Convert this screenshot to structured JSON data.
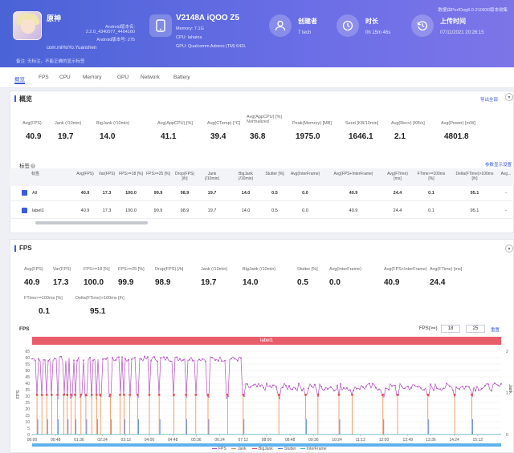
{
  "header": {
    "app_name": "原神",
    "app_lines": [
      "Android版本名:",
      "2.2.0_4340077_4464160",
      "Android版本号: 275"
    ],
    "package": "com.miHoYo.Yuanshen",
    "note": "备注: 无标注，不能正确的显示标签",
    "top_right": "数据由PerfDog8.0-210830版本收集",
    "device": {
      "title": "V2148A iQOO Z5",
      "lines": [
        "Memory: 7.1G",
        "CPU: lahaina",
        "GPU: Qualcomm Adreno (TM) 642L"
      ]
    },
    "creator": {
      "label": "创建者",
      "value": "7 tech"
    },
    "duration": {
      "label": "时长",
      "value": "0h 15m 46s"
    },
    "upload": {
      "label": "上传时间",
      "value": "07/11/2021 20:26:15"
    }
  },
  "tabs": [
    "概览",
    "FPS",
    "CPU",
    "Memory",
    "GPU",
    "Network",
    "Battery"
  ],
  "overview": {
    "title": "概览",
    "export": "导出全部",
    "metrics": [
      {
        "label": "Avg(FPS)",
        "value": "40.9"
      },
      {
        "label": "Jank (/10min)",
        "value": "19.7"
      },
      {
        "label": "BigJank (/10min)",
        "value": "14.0"
      },
      {
        "label": "Avg(AppCPU) [%]",
        "value": "41.1"
      },
      {
        "label": "Avg(CTemp) [°C]",
        "value": "39.4"
      },
      {
        "label": "Avg(AppCPU) [%] Normalized",
        "value": "36.8"
      },
      {
        "label": "Peak(Memory) [MB]",
        "value": "1975.0"
      },
      {
        "label": "Send [KB/10min]",
        "value": "1646.1"
      },
      {
        "label": "Avg(Recv) [KB/s]",
        "value": "2.1"
      },
      {
        "label": "Avg(Power) [mW]",
        "value": "4801.8"
      }
    ],
    "labels_title": "标签",
    "more_link": "参数显示设置",
    "table": {
      "headers": [
        "标签",
        "Avg(FPS)",
        "Var(FPS)",
        "FPS>=18 [%]",
        "FPS>=25 [%]",
        "Drop(FPS) [/h]",
        "Jank (/10min)",
        "BigJank (/10min)",
        "Stutter [%]",
        "Avg(InterFrame)",
        "Avg(FPS+InterFrame)",
        "Avg(FTime) [ms]",
        "FTime>=100ms [%]",
        "Delta(FTime)>100ms [/h]",
        "Avg..."
      ],
      "rows": [
        [
          "All",
          "40.9",
          "17.3",
          "100.0",
          "99.9",
          "98.9",
          "19.7",
          "14.0",
          "0.5",
          "0.0",
          "40.9",
          "24.4",
          "0.1",
          "95.1",
          "-"
        ],
        [
          "label1",
          "40.9",
          "17.3",
          "100.0",
          "99.9",
          "98.9",
          "19.7",
          "14.0",
          "0.5",
          "0.0",
          "40.9",
          "24.4",
          "0.1",
          "95.1",
          "-"
        ]
      ]
    }
  },
  "fps": {
    "title": "FPS",
    "metrics_row1": [
      {
        "label": "Avg(FPS)",
        "value": "40.9"
      },
      {
        "label": "Var(FPS)",
        "value": "17.3"
      },
      {
        "label": "FPS>=18 [%]",
        "value": "100.0"
      },
      {
        "label": "FPS>=25 [%]",
        "value": "99.9"
      },
      {
        "label": "Drop(FPS) [/h]",
        "value": "98.9"
      },
      {
        "label": "Jank (/10min)",
        "value": "19.7"
      },
      {
        "label": "BigJank (/10min)",
        "value": "14.0"
      },
      {
        "label": "Stutter [%]",
        "value": "0.5"
      },
      {
        "label": "Avg(InterFrame)",
        "value": "0.0"
      },
      {
        "label": "Avg(FPS+InterFrame)",
        "value": "40.9"
      },
      {
        "label": "Avg(FTime) [ms]",
        "value": "24.4"
      }
    ],
    "metrics_row2": [
      {
        "label": "FTime>=100ms [%]",
        "value": "0.1"
      },
      {
        "label": "Delta(FTime)>100ms [/h]",
        "value": "95.1"
      }
    ],
    "chart_label": "FPS",
    "filter_label": "FPS(>=)",
    "filter_a": "18",
    "filter_b": "25",
    "reset": "重置",
    "band_label": "label1",
    "y_axis_label": "FPS",
    "y2_axis_label": "Jank",
    "legend": [
      "FPS",
      "Jank",
      "BigJank",
      "Stutter",
      "InterFrame"
    ]
  },
  "chart_data": {
    "type": "line",
    "x_ticks": [
      "00:00",
      "00:48",
      "01:36",
      "02:24",
      "03:12",
      "04:00",
      "04:48",
      "05:36",
      "06:24",
      "07:12",
      "08:00",
      "08:48",
      "09:36",
      "10:24",
      "11:12",
      "12:00",
      "12:49",
      "13:36",
      "14:24",
      "15:12"
    ],
    "y_ticks": [
      0,
      5,
      10,
      15,
      20,
      25,
      30,
      35,
      40,
      45,
      50,
      55,
      60,
      65
    ],
    "ylim": [
      0,
      65
    ],
    "y2_ticks": [
      0,
      1,
      2
    ],
    "y2lim": [
      0,
      2
    ],
    "series": [
      {
        "name": "FPS",
        "color": "#b34fc0",
        "phase1_range": [
          57,
          61
        ],
        "phase2_range": [
          34,
          40
        ],
        "switch_at": "07:12"
      },
      {
        "name": "Jank",
        "color": "#f08a4b"
      },
      {
        "name": "BigJank",
        "color": "#e64c4c"
      },
      {
        "name": "Stutter",
        "color": "#4a7de0"
      },
      {
        "name": "InterFrame",
        "color": "#3fb8c9"
      }
    ],
    "drop_positions": [
      "00:10",
      "00:20",
      "00:30",
      "00:40",
      "00:52",
      "01:05",
      "01:12",
      "01:20",
      "01:28",
      "01:40",
      "01:50",
      "02:02",
      "02:12",
      "02:20",
      "02:40",
      "03:00",
      "03:08",
      "03:20",
      "03:36",
      "04:00",
      "04:20",
      "04:50",
      "05:15",
      "05:35",
      "06:00",
      "06:40",
      "07:12",
      "08:25",
      "09:20",
      "09:45",
      "10:28",
      "10:55",
      "11:58",
      "12:28",
      "13:30",
      "14:25",
      "15:00"
    ]
  }
}
